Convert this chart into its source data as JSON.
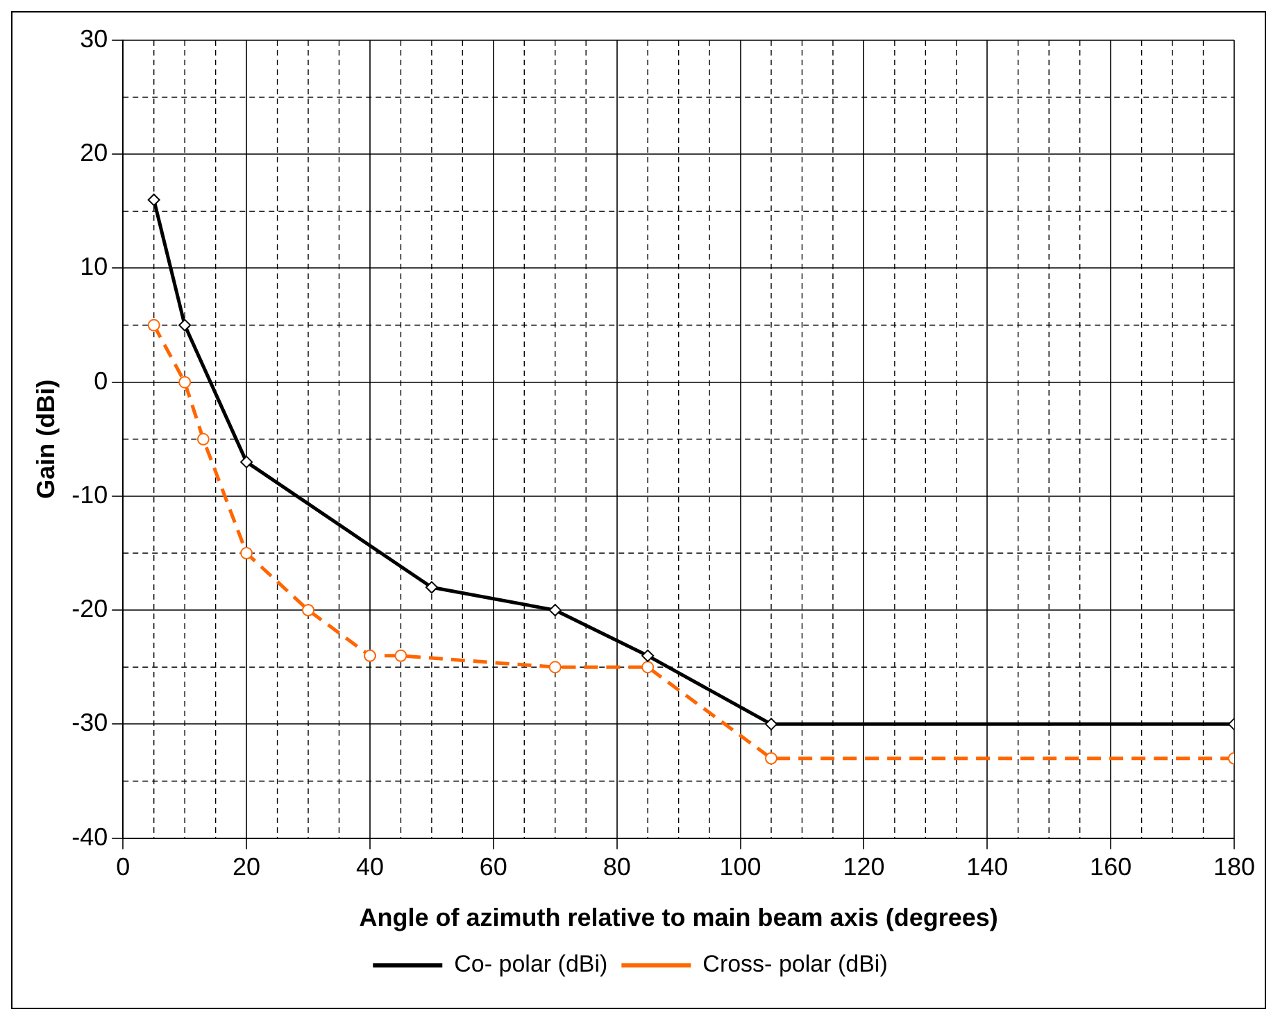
{
  "chart_data": {
    "type": "line",
    "xlabel": "Angle of azimuth relative to main beam axis (degrees)",
    "ylabel": "Gain (dBi)",
    "xlim": [
      0,
      180
    ],
    "xticks": [
      0,
      20,
      40,
      60,
      80,
      100,
      120,
      140,
      160,
      180
    ],
    "ylim": [
      -40,
      30
    ],
    "yticks": [
      -40,
      -30,
      -20,
      -10,
      0,
      10,
      20,
      30
    ],
    "grid": true,
    "legend": "bottom",
    "series": [
      {
        "name": "Co- polar (dBi)",
        "color": "#000000",
        "marker": "diamond",
        "line_style": "solid",
        "x": [
          5,
          10,
          20,
          50,
          70,
          85,
          105,
          180
        ],
        "values": [
          16,
          5,
          -7,
          -18,
          -20,
          -24,
          -30,
          -30
        ]
      },
      {
        "name": "Cross- polar (dBi)",
        "color": "#ff6600",
        "marker": "circle",
        "line_style": "dashed",
        "x": [
          5,
          10,
          13,
          20,
          30,
          40,
          45,
          70,
          85,
          105,
          180
        ],
        "values": [
          5,
          0,
          -5,
          -15,
          -20,
          -24,
          -24,
          -25,
          -25,
          -33,
          -33
        ]
      }
    ]
  }
}
